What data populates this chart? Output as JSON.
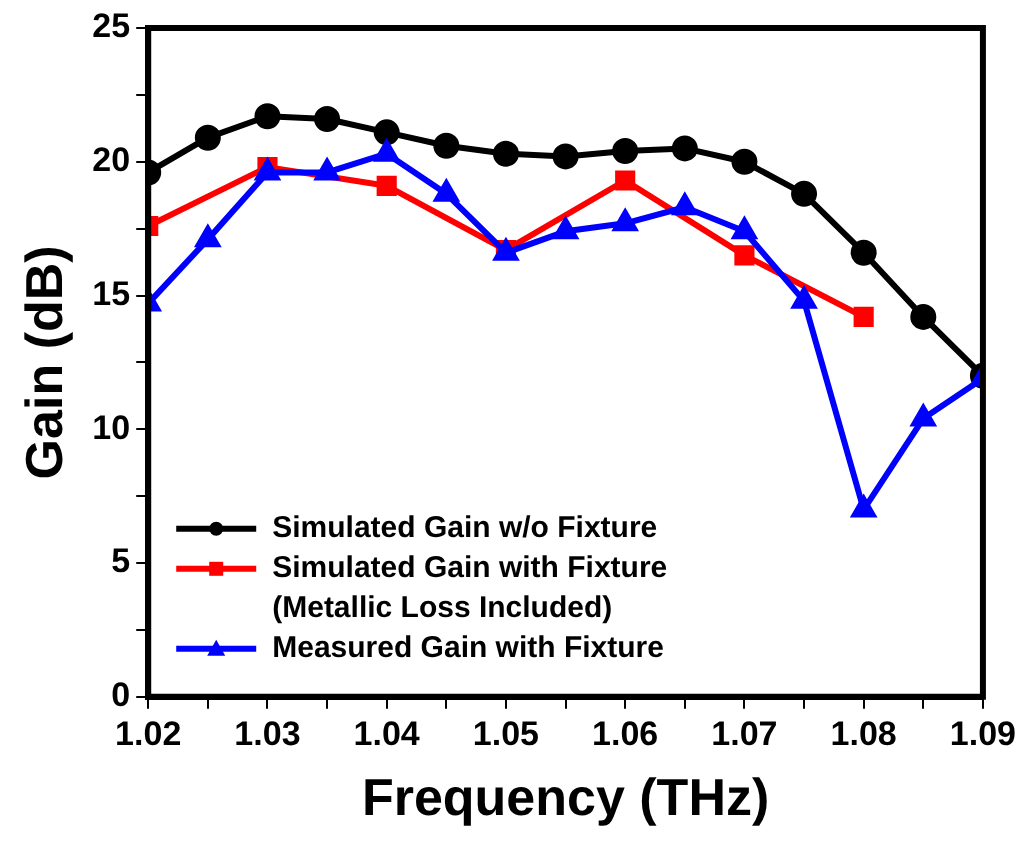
{
  "chart_data": {
    "type": "line",
    "xlabel": "Frequency (THz)",
    "ylabel": "Gain (dB)",
    "xlim": [
      1.02,
      1.09
    ],
    "ylim": [
      0,
      25
    ],
    "xticks": [
      1.02,
      {
        "value": 1.025,
        "label": null
      },
      1.03,
      {
        "value": 1.035,
        "label": null
      },
      1.04,
      {
        "value": 1.045,
        "label": null
      },
      1.05,
      {
        "value": 1.055,
        "label": null
      },
      1.06,
      {
        "value": 1.065,
        "label": null
      },
      1.07,
      {
        "value": 1.075,
        "label": null
      },
      1.08,
      {
        "value": 1.085,
        "label": null
      },
      1.09
    ],
    "yticks": [
      0,
      {
        "value": 2.5,
        "label": null
      },
      5,
      {
        "value": 7.5,
        "label": null
      },
      10,
      {
        "value": 12.5,
        "label": null
      },
      15,
      {
        "value": 17.5,
        "label": null
      },
      20,
      {
        "value": 22.5,
        "label": null
      },
      25
    ],
    "grid": false,
    "legend": "bottom left",
    "line_style": "solid",
    "series": [
      {
        "name": "Simulated Gain w/o Fixture",
        "color": "#000000",
        "marker": "circle",
        "x": [
          1.02,
          1.025,
          1.03,
          1.035,
          1.04,
          1.045,
          1.05,
          1.055,
          1.06,
          1.065,
          1.07,
          1.075,
          1.08,
          1.085,
          1.09
        ],
        "values": [
          19.6,
          20.9,
          21.7,
          21.6,
          21.1,
          20.6,
          20.3,
          20.2,
          20.4,
          20.5,
          20.0,
          18.8,
          16.6,
          14.2,
          12.0
        ]
      },
      {
        "name": "Simulated Gain with Fixture (Metallic Loss Included)",
        "color": "#ff0000",
        "marker": "square",
        "x": [
          1.02,
          1.03,
          1.04,
          1.05,
          1.06,
          1.07,
          1.08
        ],
        "values": [
          17.6,
          19.8,
          19.1,
          16.7,
          19.3,
          16.5,
          14.2
        ]
      },
      {
        "name": "Measured Gain with Fixture",
        "color": "#0000ff",
        "marker": "triangle",
        "x": [
          1.02,
          1.025,
          1.03,
          1.035,
          1.04,
          1.045,
          1.05,
          1.055,
          1.06,
          1.065,
          1.07,
          1.075,
          1.08,
          1.085,
          1.09
        ],
        "values": [
          14.7,
          17.1,
          19.6,
          19.6,
          20.3,
          18.8,
          16.6,
          17.4,
          17.7,
          18.3,
          17.4,
          14.8,
          7.0,
          10.4,
          11.9
        ]
      }
    ]
  }
}
